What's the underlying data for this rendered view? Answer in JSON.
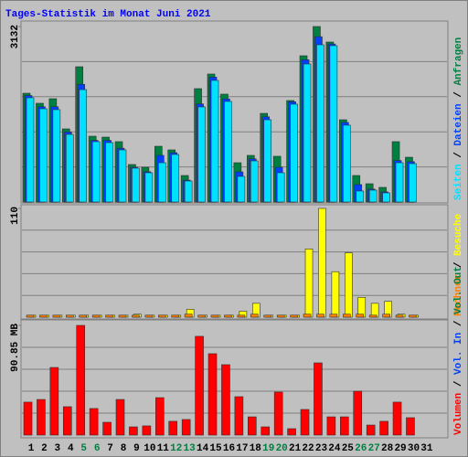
{
  "title": "Tages-Statistik im Monat Juni 2021",
  "separator": "/",
  "chart_data": [
    {
      "type": "bar",
      "ylim": [
        0,
        3132
      ],
      "yticks": [
        3132
      ],
      "grid": true,
      "series": [
        {
          "name": "Anfragen",
          "color": "#008040",
          "values": [
            1941,
            1762,
            1843,
            1305,
            2414,
            1174,
            1158,
            1077,
            669,
            620,
            995,
            930,
            473,
            2023,
            2284,
            1925,
            701,
            832,
            1582,
            816,
            1811,
            2610,
            3132,
            2855,
            1468,
            473,
            326,
            261,
            1077,
            799,
            null
          ]
        },
        {
          "name": "Dateien",
          "color": "#0040ff",
          "values": [
            1900,
            1700,
            1700,
            1250,
            2100,
            1100,
            1100,
            960,
            620,
            540,
            832,
            880,
            390,
            1750,
            2230,
            1840,
            538,
            770,
            1520,
            620,
            1790,
            2540,
            2950,
            2820,
            1420,
            310,
            230,
            180,
            740,
            720,
            null
          ]
        },
        {
          "name": "Seiten",
          "color": "#00e0ff",
          "values": [
            1860,
            1664,
            1648,
            1207,
            2006,
            1077,
            1060,
            930,
            604,
            522,
            701,
            848,
            375,
            1697,
            2170,
            1795,
            457,
            734,
            1468,
            522,
            1746,
            2463,
            2806,
            2790,
            1371,
            196,
            212,
            163,
            701,
            685,
            null
          ]
        }
      ]
    },
    {
      "type": "bar",
      "ylim": [
        0,
        110
      ],
      "yticks": [
        110
      ],
      "grid": true,
      "series": [
        {
          "name": "Besuche",
          "color": "#ffff00",
          "values": [
            2,
            2,
            2,
            2,
            2,
            2,
            2,
            2,
            3,
            2,
            2,
            2,
            8,
            2,
            2,
            2,
            6,
            14,
            2,
            2,
            2,
            69,
            110,
            46,
            65,
            20,
            14,
            16,
            3,
            2,
            null
          ]
        },
        {
          "name": "Rechner",
          "color": "#ff8000",
          "values": [
            2,
            2,
            2,
            2,
            2,
            2,
            2,
            2,
            2,
            2,
            2,
            2,
            3,
            2,
            2,
            2,
            2,
            3,
            2,
            2,
            2,
            3,
            3,
            3,
            3,
            3,
            2,
            3,
            2,
            2,
            null
          ]
        }
      ]
    },
    {
      "type": "bar",
      "ylim": [
        0,
        90.85
      ],
      "yticks": [
        {
          "value": 90.85,
          "label": "90.85 MB"
        }
      ],
      "grid": true,
      "categories": [
        "1",
        "2",
        "3",
        "4",
        "5",
        "6",
        "7",
        "8",
        "9",
        "10",
        "11",
        "12",
        "13",
        "14",
        "15",
        "16",
        "17",
        "18",
        "19",
        "20",
        "21",
        "22",
        "23",
        "24",
        "25",
        "26",
        "27",
        "28",
        "29",
        "30",
        "31"
      ],
      "category_colors": [
        "#000000",
        "#000000",
        "#000000",
        "#000000",
        "#008040",
        "#008040",
        "#000000",
        "#000000",
        "#000000",
        "#000000",
        "#000000",
        "#008040",
        "#008040",
        "#000000",
        "#000000",
        "#000000",
        "#000000",
        "#000000",
        "#008040",
        "#008040",
        "#000000",
        "#000000",
        "#000000",
        "#000000",
        "#000000",
        "#008040",
        "#008040",
        "#000000",
        "#000000",
        "#000000",
        "#000000"
      ],
      "series": [
        {
          "name": "Vol. Out",
          "color": "#008040"
        },
        {
          "name": "Vol. In",
          "color": "#0040ff"
        },
        {
          "name": "Volumen",
          "color": "#ff0000",
          "values": [
            27.3,
            29.5,
            56.0,
            23.5,
            90.85,
            22.0,
            10.6,
            29.5,
            6.8,
            7.6,
            31.0,
            11.4,
            12.9,
            81.8,
            67.4,
            58.3,
            31.8,
            15.1,
            6.8,
            35.6,
            5.3,
            21.2,
            59.8,
            15.1,
            15.1,
            36.3,
            8.3,
            11.4,
            27.3,
            14.4,
            null
          ]
        }
      ]
    }
  ]
}
